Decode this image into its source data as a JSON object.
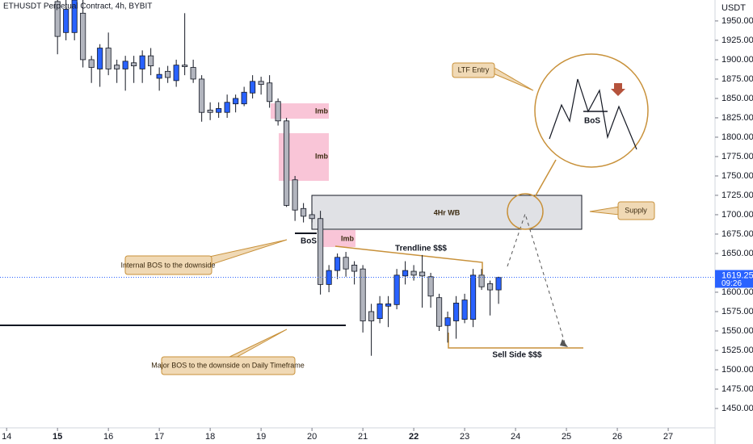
{
  "chart_data": {
    "type": "candlestick",
    "title": "ETHUSDT Perpetual Contract, 4h, BYBIT",
    "y_axis_label": "USDT",
    "up_color": "#2962ff",
    "down_color": "#b2b5be",
    "x": [
      15.0,
      15.1667,
      15.3333,
      15.5,
      15.6667,
      15.8333,
      16.0,
      16.1667,
      16.3333,
      16.5,
      16.6667,
      16.8333,
      17.0,
      17.1667,
      17.3333,
      17.5,
      17.6667,
      17.8333,
      18.0,
      18.1667,
      18.3333,
      18.5,
      18.6667,
      18.8333,
      19.0,
      19.1667,
      19.3333,
      19.5,
      19.6667,
      19.8333,
      20.0,
      20.1667,
      20.3333,
      20.5,
      20.6667,
      20.8333,
      21.0,
      21.1667,
      21.3333,
      21.5,
      21.6667,
      21.8333,
      22.0,
      22.1667,
      22.3333,
      22.5,
      22.6667,
      22.8333,
      23.0,
      23.1667,
      23.3333,
      23.5,
      23.6667
    ],
    "open": [
      1975,
      1935,
      1935,
      1960,
      1900,
      1888,
      1915,
      1893,
      1888,
      1896,
      1888,
      1905,
      1876,
      1885,
      1873,
      1893,
      1890,
      1875,
      1835,
      1832,
      1832,
      1843,
      1843,
      1857,
      1872,
      1870,
      1846,
      1821,
      1745,
      1708,
      1700,
      1695,
      1610,
      1628,
      1645,
      1635,
      1630,
      1575,
      1566,
      1582,
      1584,
      1621,
      1627,
      1626,
      1620,
      1593,
      1557,
      1563,
      1565,
      1565,
      1622,
      1611,
      1603
    ],
    "high": [
      1977,
      1977,
      1977,
      1977,
      1905,
      1920,
      1935,
      1900,
      1905,
      1905,
      1912,
      1915,
      1890,
      1892,
      1900,
      1960,
      1900,
      1880,
      1845,
      1845,
      1855,
      1855,
      1865,
      1880,
      1878,
      1880,
      1850,
      1825,
      1750,
      1715,
      1705,
      1705,
      1635,
      1650,
      1652,
      1640,
      1635,
      1585,
      1595,
      1595,
      1630,
      1640,
      1635,
      1648,
      1625,
      1598,
      1575,
      1595,
      1598,
      1630,
      1630,
      1615,
      1620
    ],
    "low": [
      1907,
      1925,
      1925,
      1890,
      1870,
      1865,
      1880,
      1870,
      1860,
      1870,
      1870,
      1880,
      1860,
      1870,
      1865,
      1880,
      1870,
      1820,
      1822,
      1825,
      1825,
      1832,
      1840,
      1850,
      1855,
      1838,
      1815,
      1710,
      1692,
      1690,
      1690,
      1597,
      1600,
      1617,
      1620,
      1610,
      1548,
      1518,
      1560,
      1555,
      1578,
      1610,
      1615,
      1580,
      1580,
      1550,
      1535,
      1540,
      1560,
      1555,
      1603,
      1570,
      1585
    ],
    "close": [
      1930,
      1965,
      1977,
      1900,
      1890,
      1915,
      1888,
      1888,
      1898,
      1892,
      1905,
      1892,
      1881,
      1877,
      1893,
      1891,
      1875,
      1832,
      1832,
      1837,
      1845,
      1850,
      1858,
      1872,
      1868,
      1846,
      1821,
      1712,
      1706,
      1698,
      1695,
      1610,
      1628,
      1645,
      1630,
      1627,
      1563,
      1563,
      1585,
      1585,
      1622,
      1628,
      1622,
      1621,
      1595,
      1556,
      1567,
      1586,
      1590,
      1622,
      1607,
      1603,
      1619
    ],
    "xlim": [
      13.87,
      27.92
    ],
    "ylim": [
      1425,
      1977
    ],
    "xticks": [
      14,
      15,
      16,
      17,
      18,
      19,
      20,
      21,
      22,
      23,
      24,
      25,
      26,
      27
    ],
    "yticks": [
      {
        "value": 1450,
        "label": "1450.00"
      },
      {
        "value": 1475,
        "label": "1475.00"
      },
      {
        "value": 1500,
        "label": "1500.00"
      },
      {
        "value": 1525,
        "label": "1525.00"
      },
      {
        "value": 1550,
        "label": "1550.00"
      },
      {
        "value": 1575,
        "label": "1575.00"
      },
      {
        "value": 1600,
        "label": "1600.00"
      },
      {
        "value": 1650,
        "label": "1650.00"
      },
      {
        "value": 1675,
        "label": "1675.00"
      },
      {
        "value": 1700,
        "label": "1700.00"
      },
      {
        "value": 1725,
        "label": "1725.00"
      },
      {
        "value": 1750,
        "label": "1750.00"
      },
      {
        "value": 1775,
        "label": "1775.00"
      },
      {
        "value": 1800,
        "label": "1800.00"
      },
      {
        "value": 1825,
        "label": "1825.00"
      },
      {
        "value": 1850,
        "label": "1850.00"
      },
      {
        "value": 1875,
        "label": "1875.00"
      },
      {
        "value": 1900,
        "label": "1900.00"
      },
      {
        "value": 1925,
        "label": "1925.00"
      },
      {
        "value": 1950,
        "label": "1950.00"
      }
    ],
    "last_price": {
      "value": 1619.25,
      "label": "1619.25",
      "countdown": "09:26",
      "color": "#2962ff"
    },
    "annotations": {
      "ltf_entry": "LTF Entry",
      "supply": "Supply",
      "internal_bos": "Internal BOS to the downside",
      "major_bos": "Major BOS to the downside on Daily Timeframe",
      "imb_1": "Imb",
      "imb_2": "Imb",
      "imb_3": "Imb",
      "wb": "4Hr WB",
      "bos": "BoS",
      "bos_inset": "BoS",
      "trendline": "Trendline $$$",
      "sell_side": "Sell Side $$$"
    }
  }
}
